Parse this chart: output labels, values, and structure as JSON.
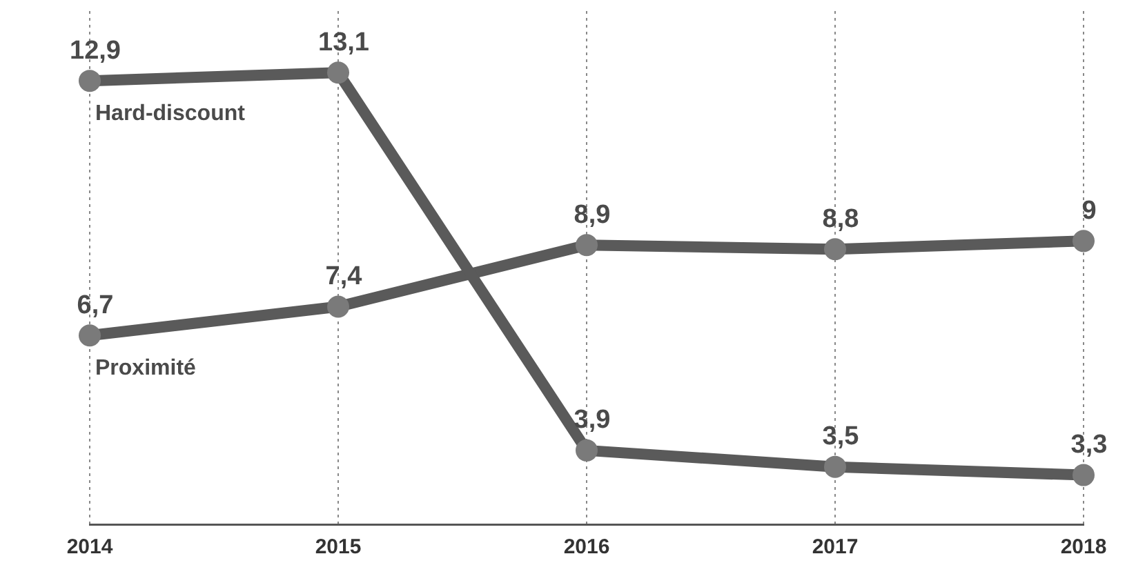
{
  "chart_data": {
    "type": "line",
    "categories": [
      "2014",
      "2015",
      "2016",
      "2017",
      "2018"
    ],
    "series": [
      {
        "name": "Hard-discount",
        "color": "#5a5a5a",
        "values": [
          12.9,
          13.1,
          3.9,
          3.5,
          3.3
        ],
        "value_labels": [
          "12,9",
          "13,1",
          "3,9",
          "3,5",
          "3,3"
        ]
      },
      {
        "name": "Proximité",
        "color": "#5a5a5a",
        "values": [
          6.7,
          7.4,
          8.9,
          8.8,
          9
        ],
        "value_labels": [
          "6,7",
          "7,4",
          "8,9",
          "8,8",
          "9"
        ]
      }
    ],
    "ylim": [
      2.1,
      14.6
    ],
    "grid": "x",
    "legend": false,
    "tick_labels": "x",
    "marker": "circle",
    "line_style": "solid"
  }
}
